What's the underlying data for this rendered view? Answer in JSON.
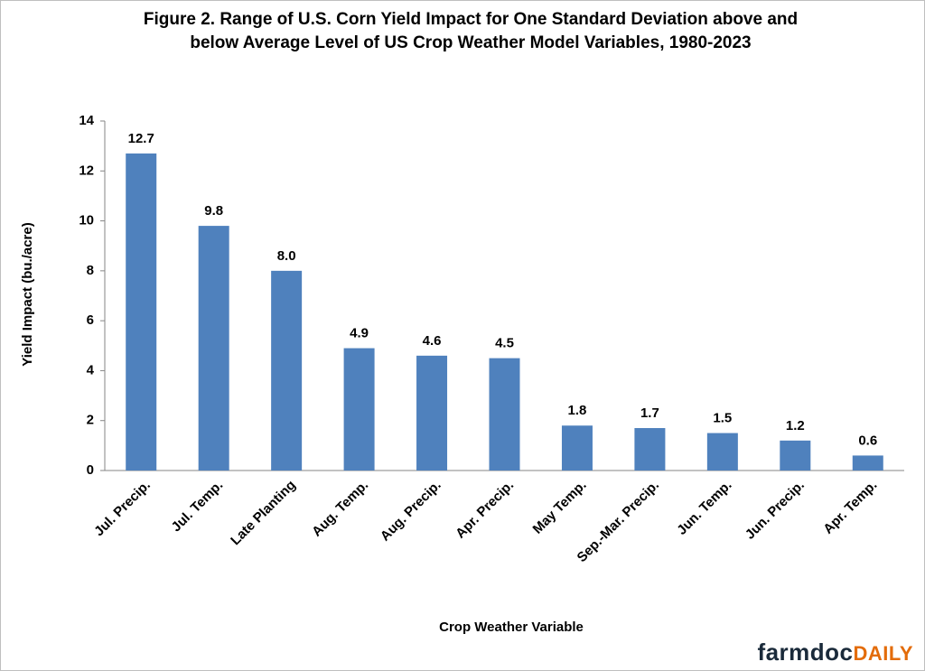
{
  "chart_data": {
    "type": "bar",
    "title": "Figure  2. Range of U.S. Corn Yield Impact for One Standard Deviation above and below Average Level of US Crop Weather Model Variables, 1980-2023",
    "x_label": "Crop Weather Variable",
    "y_label": "Yield Impact (bu./acre)",
    "categories": [
      "Jul. Precip.",
      "Jul. Temp.",
      "Late Planting",
      "Aug. Temp.",
      "Aug. Precip.",
      "Apr. Precip.",
      "May Temp.",
      "Sep.-Mar. Precip.",
      "Jun. Temp.",
      "Jun. Precip.",
      "Apr. Temp."
    ],
    "values": [
      12.7,
      9.8,
      8.0,
      4.9,
      4.6,
      4.5,
      1.8,
      1.7,
      1.5,
      1.2,
      0.6
    ],
    "value_labels": [
      "12.7",
      "9.8",
      "8.0",
      "4.9",
      "4.6",
      "4.5",
      "1.8",
      "1.7",
      "1.5",
      "1.2",
      "0.6"
    ],
    "color": "#4f81bd",
    "ylim": [
      0,
      14
    ],
    "yticks": [
      0,
      2,
      4,
      6,
      8,
      10,
      12,
      14
    ],
    "grid": false
  },
  "logo": {
    "main": "farmdoc",
    "suffix": "DAILY"
  }
}
